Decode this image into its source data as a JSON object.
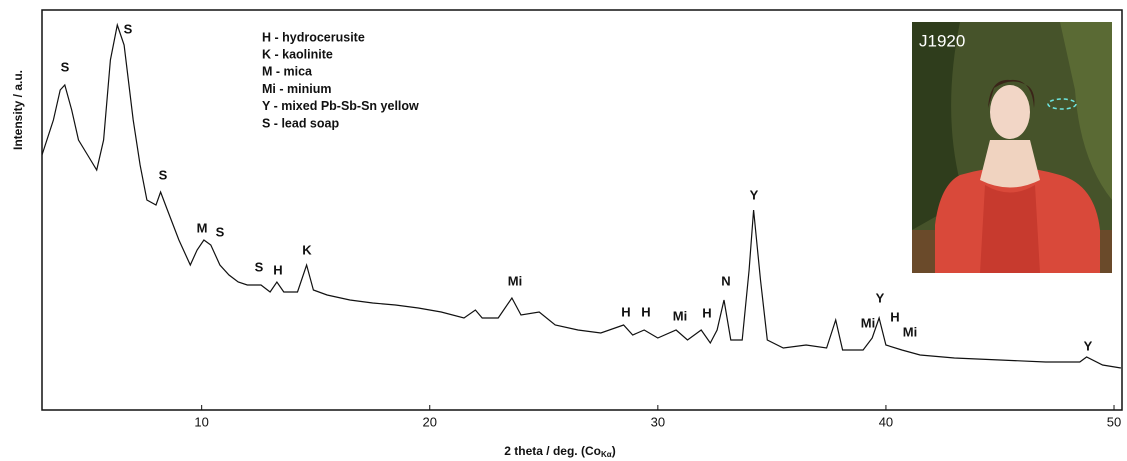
{
  "chart_data": {
    "type": "line",
    "y_label": "Intensity / a.u.",
    "x_label": "2 theta / deg. (Co",
    "x_label_sub": "Kα",
    "x_label_end": ")",
    "xlim": [
      3,
      50.35
    ],
    "xticks": [
      10,
      20,
      30,
      40,
      50
    ],
    "ylim": [
      0,
      400
    ],
    "legend_text": [
      "H - hydrocerusite",
      "K - kaolinite",
      "M - mica",
      "Mi - minium",
      "Y - mixed Pb-Sb-Sn yellow",
      "S - lead soap"
    ],
    "peak_labels": [
      "S",
      "S",
      "S",
      "M",
      "S",
      "S",
      "H",
      "K",
      "Mi",
      "H",
      "H",
      "Mi",
      "H",
      "N",
      "Y",
      "Mi",
      "Y",
      "H",
      "Mi",
      "Y"
    ],
    "inset_label": "J1920",
    "series": [
      {
        "color": "#111111",
        "x": [
          3,
          3.5,
          3.8,
          4.0,
          4.3,
          4.6,
          5.0,
          5.4,
          5.7,
          6.0,
          6.3,
          6.6,
          7.0,
          7.3,
          7.6,
          8.0,
          8.2,
          8.5,
          9.0,
          9.5,
          9.8,
          10.1,
          10.4,
          10.8,
          11.2,
          11.6,
          12.0,
          12.6,
          13.0,
          13.3,
          13.6,
          14.2,
          14.6,
          14.9,
          15.5,
          16.5,
          17.5,
          18.5,
          19.5,
          20.5,
          21.5,
          22.0,
          22.3,
          23.0,
          23.6,
          24.0,
          24.8,
          25.5,
          26.5,
          27.5,
          28.5,
          28.9,
          29.4,
          30.0,
          30.8,
          31.3,
          31.9,
          32.3,
          32.6,
          32.9,
          33.2,
          33.7,
          34.0,
          34.2,
          34.5,
          34.8,
          35.5,
          36.5,
          37.4,
          37.8,
          38.1,
          39.0,
          39.4,
          39.7,
          40.0,
          40.7,
          41.5,
          43,
          45,
          47,
          48.5,
          48.8,
          49.5,
          50.3
        ],
        "values": [
          255,
          290,
          320,
          325,
          300,
          270,
          255,
          240,
          270,
          350,
          385,
          365,
          290,
          245,
          210,
          205,
          218,
          200,
          170,
          145,
          160,
          170,
          165,
          145,
          135,
          128,
          125,
          125,
          118,
          128,
          118,
          118,
          145,
          120,
          115,
          110,
          107,
          105,
          102,
          98,
          92,
          100,
          92,
          92,
          112,
          95,
          98,
          85,
          80,
          77,
          85,
          75,
          80,
          72,
          80,
          70,
          80,
          67,
          80,
          110,
          70,
          70,
          140,
          200,
          130,
          70,
          62,
          65,
          62,
          90,
          60,
          60,
          72,
          92,
          65,
          60,
          55,
          52,
          50,
          48,
          48,
          53,
          45,
          42
        ]
      }
    ]
  }
}
